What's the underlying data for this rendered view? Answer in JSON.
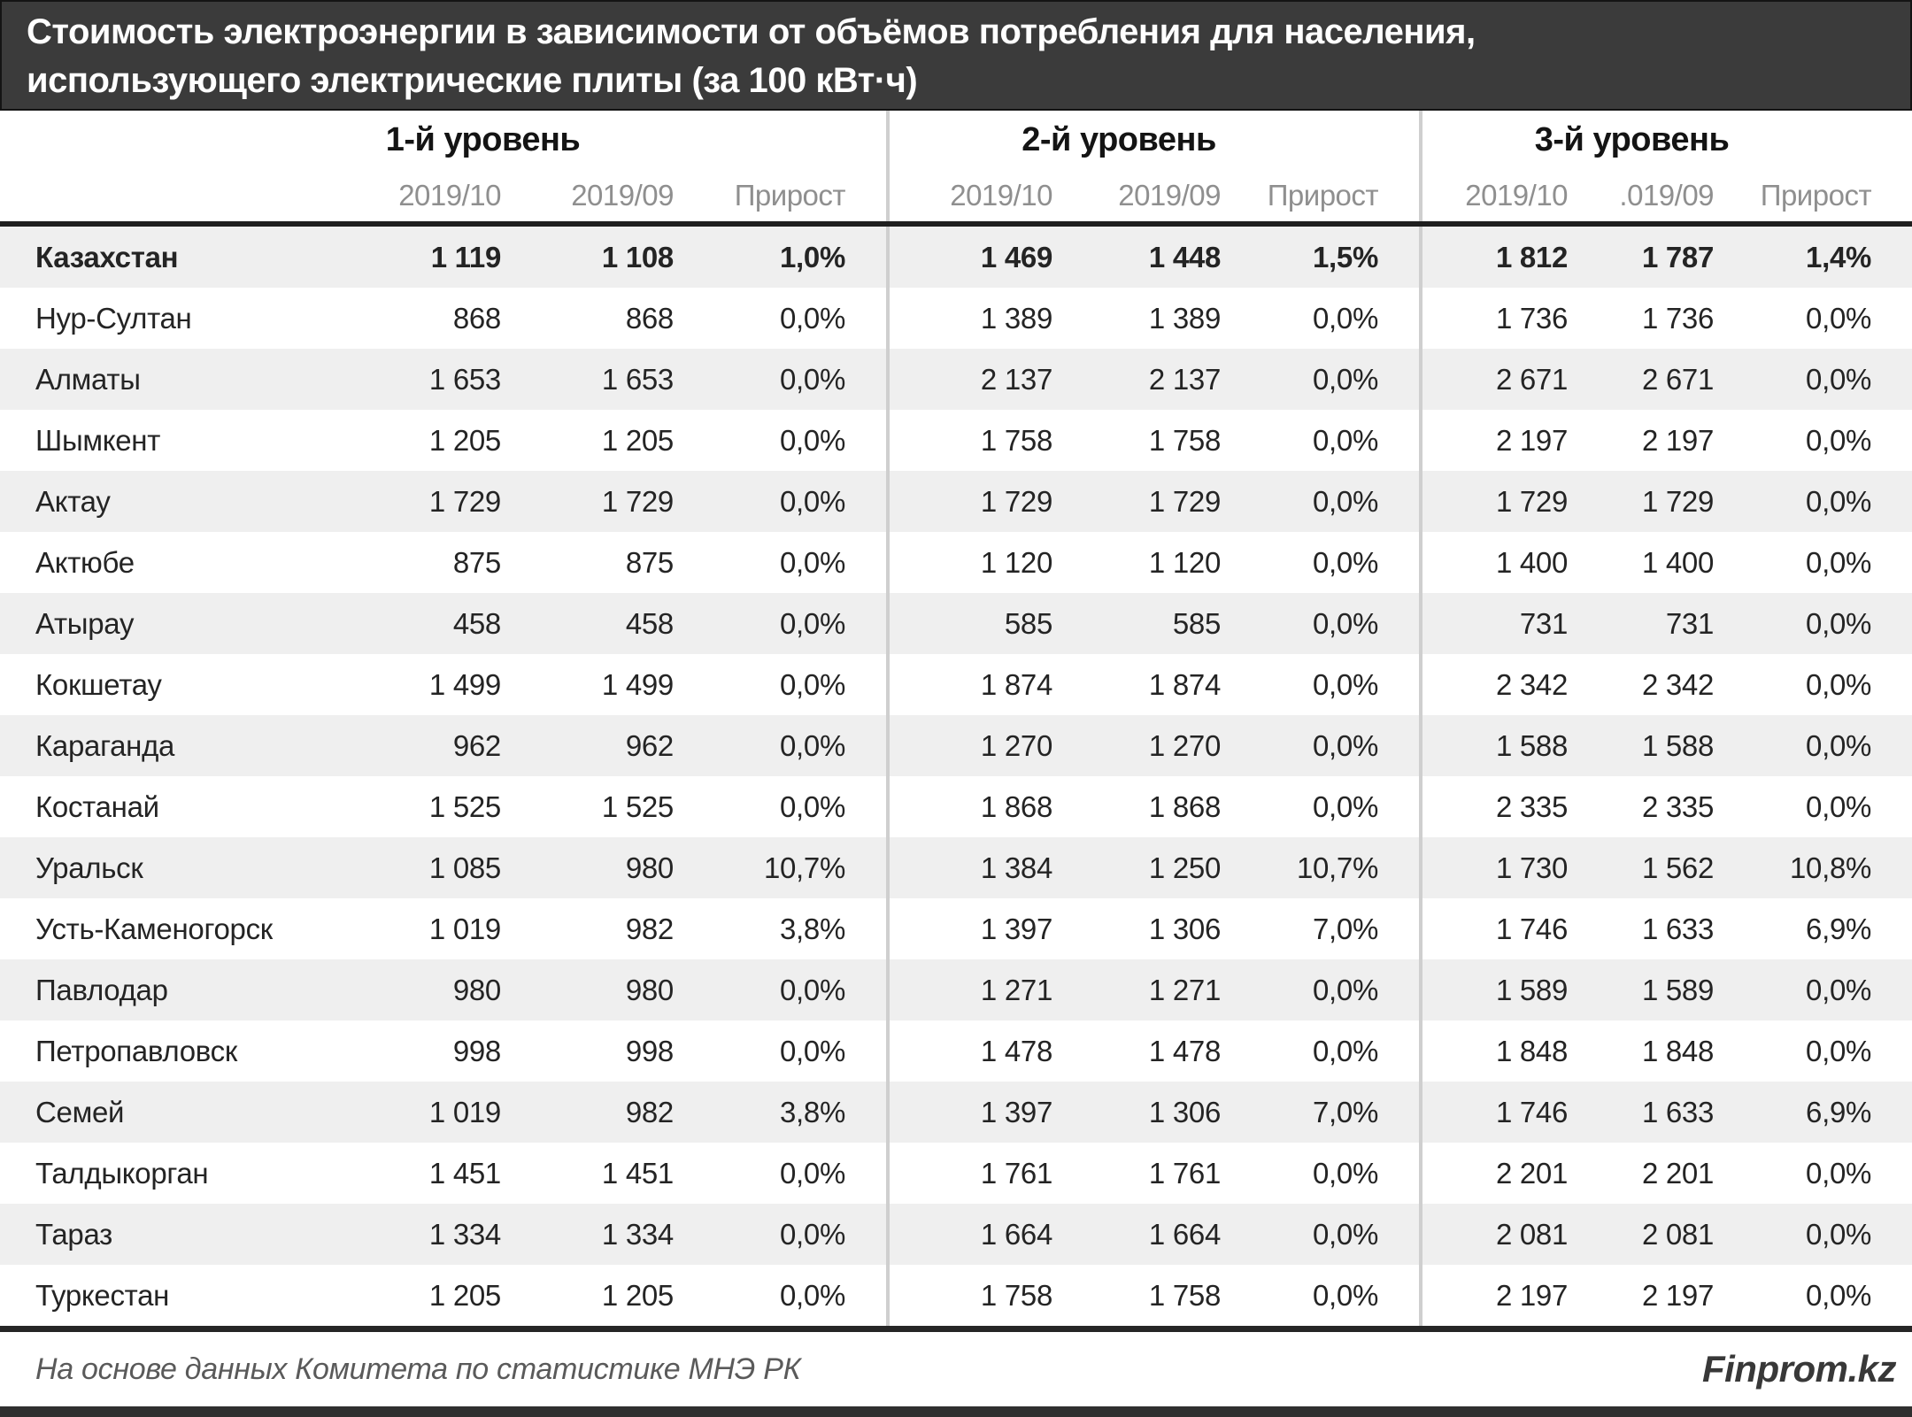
{
  "title": {
    "line1": "Стоимость электроэнергии в зависимости от объёмов потребления для населения,",
    "line2": "использующего электрические плиты (за 100 кВт·ч)"
  },
  "chart_data": {
    "type": "table",
    "title": "Стоимость электроэнергии в зависимости от объёмов потребления для населения, использующего электрические плиты (за 100 кВт·ч)",
    "column_groups": [
      {
        "label": "1-й уровень",
        "columns": [
          "2019/10",
          "2019/09",
          "Прирост"
        ]
      },
      {
        "label": "2-й уровень",
        "columns": [
          "2019/10",
          "2019/09",
          "Прирост"
        ]
      },
      {
        "label": "3-й уровень",
        "columns": [
          "2019/10",
          ".019/09",
          "Прирост"
        ]
      }
    ],
    "rows": [
      {
        "region": "Казахстан",
        "bold": true,
        "values": [
          "1 119",
          "1 108",
          "1,0%",
          "1 469",
          "1 448",
          "1,5%",
          "1 812",
          "1 787",
          "1,4%"
        ]
      },
      {
        "region": "Нур-Султан",
        "bold": false,
        "values": [
          "868",
          "868",
          "0,0%",
          "1 389",
          "1 389",
          "0,0%",
          "1 736",
          "1 736",
          "0,0%"
        ]
      },
      {
        "region": "Алматы",
        "bold": false,
        "values": [
          "1 653",
          "1 653",
          "0,0%",
          "2 137",
          "2 137",
          "0,0%",
          "2 671",
          "2 671",
          "0,0%"
        ]
      },
      {
        "region": "Шымкент",
        "bold": false,
        "values": [
          "1 205",
          "1 205",
          "0,0%",
          "1 758",
          "1 758",
          "0,0%",
          "2 197",
          "2 197",
          "0,0%"
        ]
      },
      {
        "region": "Актау",
        "bold": false,
        "values": [
          "1 729",
          "1 729",
          "0,0%",
          "1 729",
          "1 729",
          "0,0%",
          "1 729",
          "1 729",
          "0,0%"
        ]
      },
      {
        "region": "Актюбе",
        "bold": false,
        "values": [
          "875",
          "875",
          "0,0%",
          "1 120",
          "1 120",
          "0,0%",
          "1 400",
          "1 400",
          "0,0%"
        ]
      },
      {
        "region": "Атырау",
        "bold": false,
        "values": [
          "458",
          "458",
          "0,0%",
          "585",
          "585",
          "0,0%",
          "731",
          "731",
          "0,0%"
        ]
      },
      {
        "region": "Кокшетау",
        "bold": false,
        "values": [
          "1 499",
          "1 499",
          "0,0%",
          "1 874",
          "1 874",
          "0,0%",
          "2 342",
          "2 342",
          "0,0%"
        ]
      },
      {
        "region": "Караганда",
        "bold": false,
        "values": [
          "962",
          "962",
          "0,0%",
          "1 270",
          "1 270",
          "0,0%",
          "1 588",
          "1 588",
          "0,0%"
        ]
      },
      {
        "region": "Костанай",
        "bold": false,
        "values": [
          "1 525",
          "1 525",
          "0,0%",
          "1 868",
          "1 868",
          "0,0%",
          "2 335",
          "2 335",
          "0,0%"
        ]
      },
      {
        "region": "Уральск",
        "bold": false,
        "values": [
          "1 085",
          "980",
          "10,7%",
          "1 384",
          "1 250",
          "10,7%",
          "1 730",
          "1 562",
          "10,8%"
        ]
      },
      {
        "region": "Усть-Каменогорск",
        "bold": false,
        "values": [
          "1 019",
          "982",
          "3,8%",
          "1 397",
          "1 306",
          "7,0%",
          "1 746",
          "1 633",
          "6,9%"
        ]
      },
      {
        "region": "Павлодар",
        "bold": false,
        "values": [
          "980",
          "980",
          "0,0%",
          "1 271",
          "1 271",
          "0,0%",
          "1 589",
          "1 589",
          "0,0%"
        ]
      },
      {
        "region": "Петропавловск",
        "bold": false,
        "values": [
          "998",
          "998",
          "0,0%",
          "1 478",
          "1 478",
          "0,0%",
          "1 848",
          "1 848",
          "0,0%"
        ]
      },
      {
        "region": "Семей",
        "bold": false,
        "values": [
          "1 019",
          "982",
          "3,8%",
          "1 397",
          "1 306",
          "7,0%",
          "1 746",
          "1 633",
          "6,9%"
        ]
      },
      {
        "region": "Талдыкорган",
        "bold": false,
        "values": [
          "1 451",
          "1 451",
          "0,0%",
          "1 761",
          "1 761",
          "0,0%",
          "2 201",
          "2 201",
          "0,0%"
        ]
      },
      {
        "region": "Тараз",
        "bold": false,
        "values": [
          "1 334",
          "1 334",
          "0,0%",
          "1 664",
          "1 664",
          "0,0%",
          "2 081",
          "2 081",
          "0,0%"
        ]
      },
      {
        "region": "Туркестан",
        "bold": false,
        "values": [
          "1 205",
          "1 205",
          "0,0%",
          "1 758",
          "1 758",
          "0,0%",
          "2 197",
          "2 197",
          "0,0%"
        ]
      }
    ]
  },
  "footer": {
    "source": "На основе данных Комитета по статистике МНЭ РК",
    "brand": "Finprom.kz"
  },
  "colors": {
    "title_bg": "#3b3b3b",
    "title_text": "#ffffff",
    "row_alt_bg": "#efefef",
    "subheader_text": "#8f8f8f",
    "body_text": "#242424",
    "group_divider": "#cfcfcf",
    "thick_rule": "#1f1f1f",
    "bottom_bar": "#2f2f2f"
  }
}
